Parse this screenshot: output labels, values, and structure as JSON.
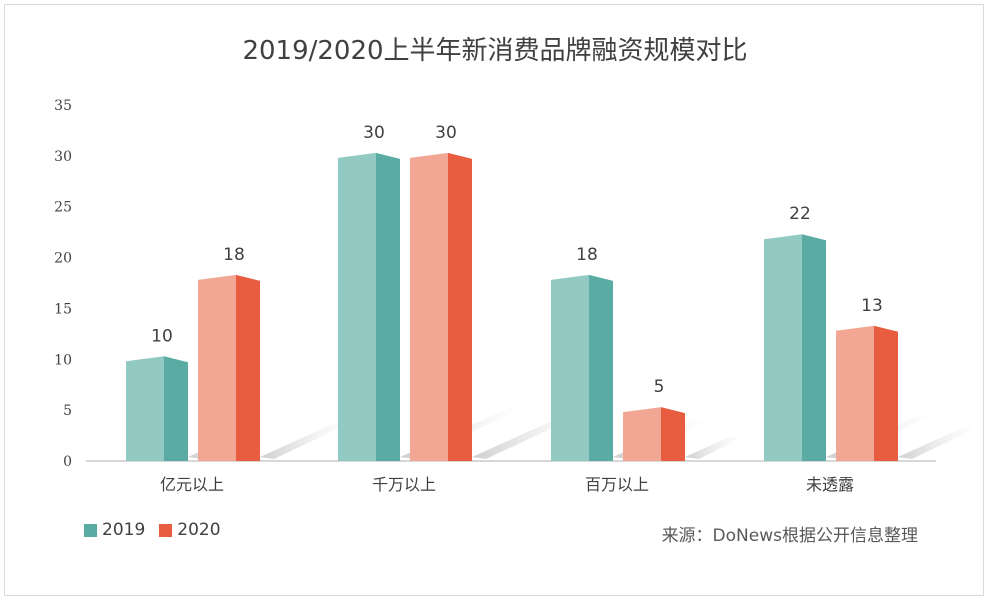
{
  "title": "2019/2020上半年新消费品牌融资规模对比",
  "source": "来源：DoNews根据公开信息整理",
  "colors": {
    "s2019_front": "#93c9c3",
    "s2019_side": "#5aaba3",
    "s2020_front": "#f2a795",
    "s2020_side": "#e85c3f",
    "axis": "#bfbfbf",
    "label": "#404040"
  },
  "chart_data": {
    "type": "bar",
    "title": "2019/2020上半年新消费品牌融资规模对比",
    "categories": [
      "亿元以上",
      "千万以上",
      "百万以上",
      "未透露"
    ],
    "series": [
      {
        "name": "2019",
        "values": [
          10,
          30,
          18,
          22
        ]
      },
      {
        "name": "2020",
        "values": [
          18,
          30,
          5,
          13
        ]
      }
    ],
    "ylim": [
      0,
      35
    ],
    "yticks": [
      "0",
      "5",
      "10",
      "15",
      "20",
      "25",
      "30",
      "35"
    ],
    "grid": false,
    "legend": "bottom-left",
    "data_labels": true
  },
  "legend": [
    {
      "label": "2019"
    },
    {
      "label": "2020"
    }
  ]
}
